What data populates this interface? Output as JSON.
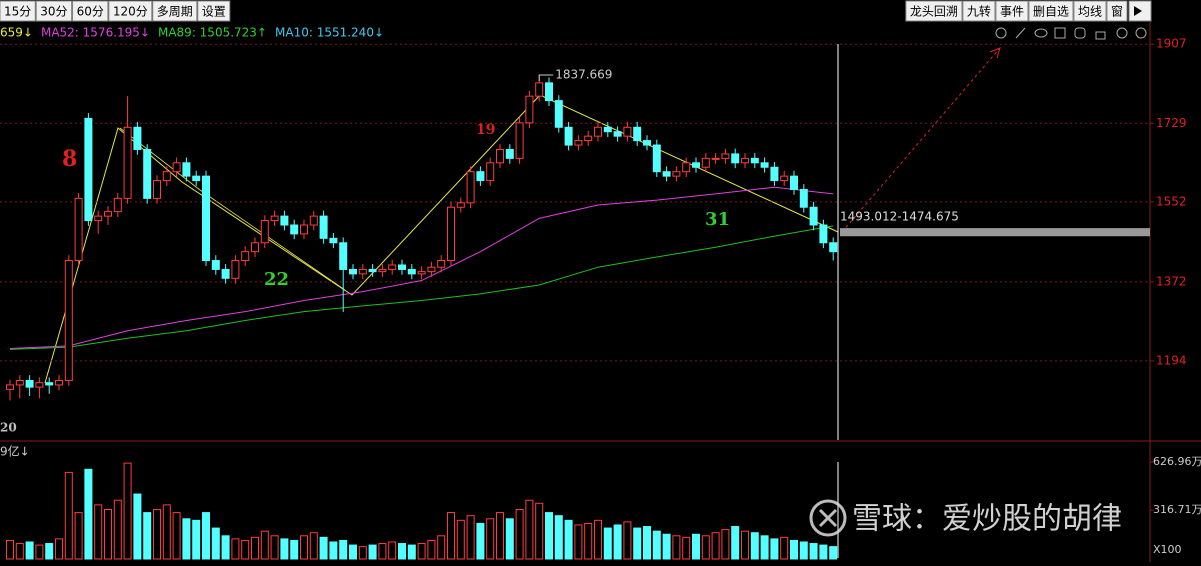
{
  "toolbar": {
    "left": [
      "15分",
      "30分",
      "60分",
      "120分",
      "多周期",
      "设置"
    ],
    "right": [
      "龙头回溯",
      "九转",
      "事件",
      "删自选",
      "均线",
      "窗"
    ]
  },
  "indicator_bar": [
    {
      "text": "659↓",
      "color": "#e6e645"
    },
    {
      "text": "MA52: 1576.195↓",
      "color": "#e040e0"
    },
    {
      "text": "MA89: 1505.723↑",
      "color": "#30d030"
    },
    {
      "text": "MA10: 1551.240↓",
      "color": "#40c8f0"
    }
  ],
  "watermark": "雪球：爱炒股的胡律",
  "chart_data": [
    {
      "type": "candlestick",
      "open": [
        1130,
        1140,
        1150,
        1135,
        1145,
        1140,
        1150,
        1420,
        1740,
        1510,
        1520,
        1530,
        1560,
        1720,
        1670,
        1560,
        1600,
        1620,
        1640,
        1610,
        1610,
        1420,
        1400,
        1380,
        1420,
        1440,
        1460,
        1510,
        1520,
        1500,
        1480,
        1500,
        1520,
        1470,
        1460,
        1400,
        1390,
        1400,
        1395,
        1400,
        1410,
        1400,
        1390,
        1395,
        1405,
        1420,
        1540,
        1550,
        1620,
        1600,
        1640,
        1670,
        1650,
        1730,
        1790,
        1820,
        1780,
        1720,
        1680,
        1690,
        1700,
        1720,
        1710,
        1700,
        1720,
        1690,
        1680,
        1620,
        1610,
        1620,
        1640,
        1630,
        1650,
        1650,
        1660,
        1640,
        1650,
        1640,
        1630,
        1600,
        1610,
        1580,
        1540,
        1500,
        1460
      ],
      "high": [
        1152,
        1162,
        1162,
        1157,
        1157,
        1162,
        1432,
        1572,
        1752,
        1532,
        1542,
        1572,
        1790,
        1732,
        1682,
        1612,
        1632,
        1652,
        1652,
        1622,
        1622,
        1432,
        1412,
        1432,
        1452,
        1472,
        1522,
        1532,
        1532,
        1512,
        1512,
        1532,
        1532,
        1482,
        1472,
        1412,
        1412,
        1412,
        1412,
        1422,
        1422,
        1412,
        1407,
        1417,
        1432,
        1552,
        1562,
        1632,
        1632,
        1652,
        1682,
        1682,
        1742,
        1802,
        1837.669,
        1832,
        1792,
        1732,
        1702,
        1712,
        1732,
        1732,
        1722,
        1732,
        1732,
        1702,
        1692,
        1632,
        1632,
        1652,
        1652,
        1662,
        1662,
        1672,
        1672,
        1662,
        1662,
        1652,
        1642,
        1622,
        1622,
        1592,
        1552,
        1512,
        1472
      ],
      "low": [
        1105,
        1110,
        1115,
        1110,
        1120,
        1128,
        1138,
        1408,
        1498,
        1480,
        1500,
        1518,
        1548,
        1658,
        1548,
        1548,
        1588,
        1608,
        1598,
        1588,
        1408,
        1388,
        1368,
        1368,
        1408,
        1428,
        1448,
        1498,
        1488,
        1468,
        1468,
        1488,
        1458,
        1448,
        1304,
        1378,
        1378,
        1383,
        1383,
        1388,
        1388,
        1378,
        1378,
        1383,
        1393,
        1408,
        1528,
        1538,
        1588,
        1588,
        1628,
        1638,
        1638,
        1718,
        1778,
        1768,
        1708,
        1668,
        1668,
        1678,
        1688,
        1698,
        1688,
        1688,
        1678,
        1668,
        1608,
        1598,
        1598,
        1608,
        1618,
        1618,
        1638,
        1638,
        1628,
        1628,
        1628,
        1618,
        1588,
        1588,
        1568,
        1528,
        1488,
        1448,
        1420
      ],
      "close": [
        1140,
        1150,
        1135,
        1145,
        1140,
        1150,
        1420,
        1560,
        1510,
        1520,
        1530,
        1560,
        1720,
        1670,
        1560,
        1600,
        1620,
        1640,
        1610,
        1600,
        1420,
        1400,
        1380,
        1420,
        1440,
        1460,
        1510,
        1520,
        1500,
        1480,
        1500,
        1520,
        1470,
        1460,
        1400,
        1390,
        1400,
        1395,
        1400,
        1410,
        1400,
        1390,
        1395,
        1405,
        1420,
        1540,
        1550,
        1620,
        1600,
        1640,
        1670,
        1650,
        1730,
        1790,
        1820,
        1780,
        1720,
        1680,
        1690,
        1700,
        1720,
        1710,
        1700,
        1720,
        1690,
        1680,
        1620,
        1610,
        1620,
        1640,
        1630,
        1650,
        1650,
        1660,
        1640,
        1650,
        1640,
        1630,
        1600,
        1610,
        1580,
        1540,
        1500,
        1460,
        1440
      ],
      "up_color": "#ff3c3c",
      "down_color": "#54ffff",
      "lines": [
        {
          "color": "#e040e0",
          "x": [
            0,
            6,
            12,
            18,
            24,
            30,
            36,
            42,
            48,
            54,
            60,
            66,
            72,
            78,
            84
          ],
          "values": [
            1222,
            1228,
            1262,
            1285,
            1305,
            1330,
            1350,
            1375,
            1440,
            1515,
            1545,
            1556,
            1570,
            1585,
            1570
          ]
        },
        {
          "color": "#20c020",
          "x": [
            0,
            6,
            12,
            18,
            24,
            30,
            36,
            42,
            48,
            54,
            60,
            66,
            72,
            78,
            84
          ],
          "values": [
            1220,
            1225,
            1245,
            1262,
            1285,
            1305,
            1318,
            1330,
            1345,
            1365,
            1405,
            1428,
            1450,
            1475,
            1498
          ]
        }
      ],
      "annotations": [
        {
          "text": "8",
          "color": "#e02020"
        },
        {
          "text": "19",
          "color": "#e02020"
        },
        {
          "text": "22",
          "color": "#30d030"
        },
        {
          "text": "31",
          "color": "#30d030"
        },
        {
          "text": "20",
          "color": "#c0c0c0"
        }
      ],
      "range_band": {
        "label": "1493.012-1474.675",
        "high": 1493.012,
        "low": 1474.675
      },
      "ylim": [
        1016,
        1957
      ],
      "yticks": [
        1907,
        1729,
        1552,
        1372,
        1194
      ],
      "grid": true
    },
    {
      "type": "bar",
      "label": "9亿↓",
      "values": [
        120,
        100,
        110,
        90,
        100,
        130,
        560,
        300,
        580,
        350,
        320,
        380,
        620,
        420,
        300,
        320,
        350,
        300,
        260,
        250,
        300,
        200,
        150,
        130,
        120,
        140,
        180,
        150,
        130,
        120,
        150,
        170,
        140,
        110,
        120,
        90,
        80,
        90,
        100,
        110,
        100,
        90,
        100,
        120,
        150,
        300,
        250,
        280,
        230,
        260,
        300,
        260,
        320,
        380,
        360,
        300,
        280,
        250,
        220,
        230,
        250,
        200,
        220,
        240,
        200,
        210,
        180,
        160,
        150,
        140,
        160,
        150,
        170,
        190,
        210,
        180,
        170,
        150,
        130,
        140,
        120,
        110,
        100,
        90,
        80
      ],
      "ylim": [
        0,
        750
      ],
      "yticks": [
        {
          "value": 626.96,
          "label": "626.96万"
        },
        {
          "value": 316.71,
          "label": "316.71万"
        }
      ],
      "axis_unit": "X100"
    }
  ]
}
